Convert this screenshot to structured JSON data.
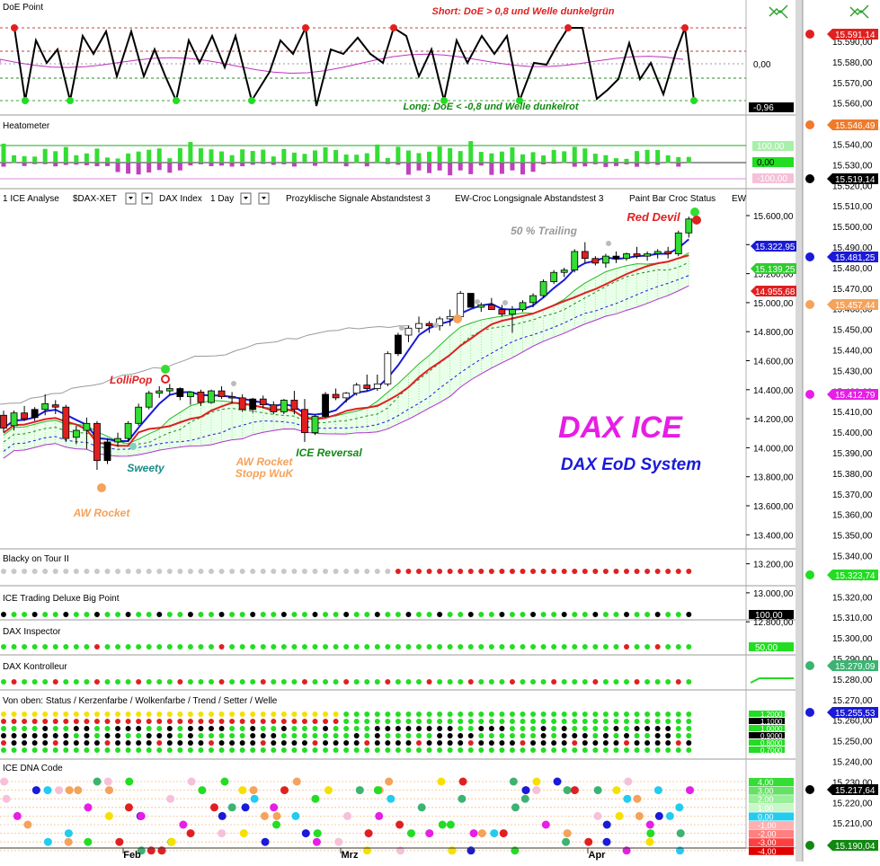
{
  "window": {
    "title": ""
  },
  "toolbar": {
    "items": [
      "1 ICE Analyse",
      "$DAX-XET",
      "DAX Index",
      "1 Day",
      "Prozyklische Signale Abstandstest 3",
      "EW-Croc Longsignale Abstandstest 3",
      "Paint Bar Croc Status",
      "EW"
    ]
  },
  "panels": {
    "doe": {
      "title": "DoE Point",
      "short_label": "Short: DoE > 0,8 und Welle dunkelgrün",
      "long_label": "Long: DoE < -0,8 und Welle dunkelrot",
      "zero_label": "0,00",
      "value_badge": "-0,96"
    },
    "heatometer": {
      "title": "Heatometer",
      "scale": [
        "100,00",
        "0,00",
        "-100,00"
      ]
    },
    "blacky": {
      "title": "Blacky on Tour II"
    },
    "trading": {
      "title": "ICE Trading Deluxe Big Point",
      "badge": "100,00"
    },
    "inspector": {
      "title": "DAX Inspector",
      "badge": "50,00"
    },
    "kontrolleur": {
      "title": "DAX Kontrolleur"
    },
    "status": {
      "title": "Von oben: Status / Kerzenfarbe / Wolkenfarbe / Trend / Setter / Welle",
      "scale": [
        "1,2000",
        "1,1000",
        "1,0000",
        "0,9000",
        "0,8000",
        "0,7000"
      ]
    },
    "dna": {
      "title": "ICE DNA Code",
      "scale": [
        "4,00",
        "3,00",
        "2,00",
        "1,00",
        "0,00",
        "-1,00",
        "-2,00",
        "-3,00",
        "-4,00"
      ]
    }
  },
  "annotations": {
    "title_big": "DAX ICE",
    "title_sub": "DAX EoD System",
    "red_devil": "Red Devil",
    "trailing": "50 % Trailing",
    "lollipop": "LolliPop",
    "sweety": "Sweety",
    "aw_rocket": "AW Rocket",
    "aw_rocket_stopp_1": "AW Rocket",
    "aw_rocket_stopp_2": "Stopp WuK",
    "ice_reversal": "ICE Reversal"
  },
  "main_axis": {
    "ticks": [
      "15.600,00",
      "15.400,00",
      "15.200,00",
      "15.000,00",
      "14.800,00",
      "14.600,00",
      "14.400,00",
      "14.200,00",
      "14.000,00",
      "13.800,00",
      "13.600,00",
      "13.400,00",
      "13.200,00",
      "13.000,00",
      "12.800,00"
    ],
    "badges": [
      {
        "text": "15.322,95",
        "color": "#1a1ad8"
      },
      {
        "text": "15.139,25",
        "color": "#2ecc2e"
      },
      {
        "text": "14.955,68",
        "color": "#e02020"
      }
    ]
  },
  "right_axis": {
    "ticks": [
      "15.590,00",
      "15.580,00",
      "15.570,00",
      "15.560,00",
      "15.550,00",
      "15.540,00",
      "15.530,00",
      "15.520,00",
      "15.510,00",
      "15.500,00",
      "15.490,00",
      "15.480,00",
      "15.470,00",
      "15.460,00",
      "15.450,00",
      "15.440,00",
      "15.430,00",
      "15.420,00",
      "15.410,00",
      "15.400,00",
      "15.390,00",
      "15.380,00",
      "15.370,00",
      "15.360,00",
      "15.350,00",
      "15.340,00",
      "15.330,00",
      "15.320,00",
      "15.310,00",
      "15.300,00",
      "15.290,00",
      "15.280,00",
      "15.270,00",
      "15.260,00",
      "15.250,00",
      "15.240,00",
      "15.230,00",
      "15.220,00",
      "15.210,00",
      "15.200,00",
      "15.190,00"
    ],
    "levels": [
      {
        "text": "15.591,14",
        "color": "#e02020"
      },
      {
        "text": "15.546,49",
        "color": "#f07a2a"
      },
      {
        "text": "15.519,14",
        "color": "#000000"
      },
      {
        "text": "15.481,25",
        "color": "#1a1ad8"
      },
      {
        "text": "15.457,44",
        "color": "#f5a25a"
      },
      {
        "text": "15.412,79",
        "color": "#e61ee6"
      },
      {
        "text": "15.323,74",
        "color": "#22dd22"
      },
      {
        "text": "15.279,09",
        "color": "#3cb371"
      },
      {
        "text": "15.255,53",
        "color": "#1a1ad8"
      },
      {
        "text": "15.217,64",
        "color": "#000000"
      },
      {
        "text": "15.190,04",
        "color": "#118811"
      }
    ]
  },
  "x_axis": {
    "labels": [
      "Feb",
      "Mrz",
      "Apr"
    ]
  },
  "chart_data": {
    "type": "candlestick",
    "ylim": [
      12800,
      15600
    ],
    "ohlc": [
      [
        13850,
        13890,
        13700,
        13740
      ],
      [
        13760,
        13890,
        13720,
        13870
      ],
      [
        13870,
        13930,
        13800,
        13820
      ],
      [
        13830,
        13920,
        13800,
        13900
      ],
      [
        13900,
        14030,
        13850,
        13950
      ],
      [
        13940,
        13980,
        13860,
        13920
      ],
      [
        13920,
        13940,
        13620,
        13650
      ],
      [
        13660,
        13760,
        13600,
        13720
      ],
      [
        13720,
        13830,
        13560,
        13780
      ],
      [
        13780,
        13800,
        13380,
        13460
      ],
      [
        13460,
        13650,
        13430,
        13620
      ],
      [
        13620,
        13700,
        13580,
        13650
      ],
      [
        13650,
        13800,
        13620,
        13780
      ],
      [
        13780,
        13950,
        13760,
        13920
      ],
      [
        13920,
        14060,
        13900,
        14040
      ],
      [
        14040,
        14100,
        14000,
        14060
      ],
      [
        14060,
        14120,
        14020,
        14080
      ],
      [
        14080,
        14090,
        13980,
        14010
      ],
      [
        14010,
        14050,
        13940,
        14050
      ],
      [
        14050,
        14070,
        13930,
        13960
      ],
      [
        13960,
        14070,
        13950,
        14060
      ],
      [
        14060,
        14100,
        13990,
        14010
      ],
      [
        14010,
        14050,
        13950,
        14000
      ],
      [
        14000,
        14030,
        13880,
        13900
      ],
      [
        13900,
        14000,
        13870,
        13990
      ],
      [
        13990,
        14020,
        13910,
        13940
      ],
      [
        13940,
        13970,
        13860,
        13880
      ],
      [
        13880,
        13990,
        13860,
        13980
      ],
      [
        13980,
        14060,
        13860,
        13900
      ],
      [
        13900,
        13990,
        13620,
        13700
      ],
      [
        13700,
        13860,
        13680,
        13840
      ],
      [
        13840,
        14050,
        13830,
        14030
      ],
      [
        14030,
        14080,
        13980,
        14000
      ],
      [
        14000,
        14050,
        13960,
        14040
      ],
      [
        14040,
        14130,
        14020,
        14110
      ],
      [
        14110,
        14200,
        14060,
        14080
      ],
      [
        14080,
        14200,
        14060,
        14120
      ],
      [
        14120,
        14400,
        14100,
        14380
      ],
      [
        14380,
        14560,
        14360,
        14540
      ],
      [
        14540,
        14620,
        14480,
        14600
      ],
      [
        14600,
        14700,
        14560,
        14640
      ],
      [
        14640,
        14660,
        14560,
        14620
      ],
      [
        14620,
        14700,
        14580,
        14680
      ],
      [
        14680,
        14760,
        14620,
        14700
      ],
      [
        14700,
        14920,
        14680,
        14900
      ],
      [
        14900,
        14880,
        14780,
        14780
      ],
      [
        14780,
        14820,
        14740,
        14800
      ],
      [
        14800,
        14860,
        14760,
        14760
      ],
      [
        14760,
        14800,
        14700,
        14720
      ],
      [
        14720,
        14790,
        14560,
        14760
      ],
      [
        14760,
        14840,
        14740,
        14820
      ],
      [
        14820,
        14900,
        14780,
        14880
      ],
      [
        14880,
        15020,
        14860,
        15000
      ],
      [
        15000,
        15100,
        14980,
        15080
      ],
      [
        15080,
        15120,
        15040,
        15100
      ],
      [
        15100,
        15280,
        15080,
        15260
      ],
      [
        15260,
        15340,
        15160,
        15200
      ],
      [
        15200,
        15220,
        15140,
        15160
      ],
      [
        15160,
        15240,
        15120,
        15220
      ],
      [
        15220,
        15260,
        15160,
        15200
      ],
      [
        15200,
        15250,
        15180,
        15240
      ],
      [
        15240,
        15300,
        15200,
        15220
      ],
      [
        15220,
        15260,
        15180,
        15240
      ],
      [
        15240,
        15280,
        15200,
        15260
      ],
      [
        15260,
        15300,
        15200,
        15240
      ],
      [
        15240,
        15440,
        15220,
        15420
      ],
      [
        15420,
        15560,
        15380,
        15540
      ]
    ]
  }
}
